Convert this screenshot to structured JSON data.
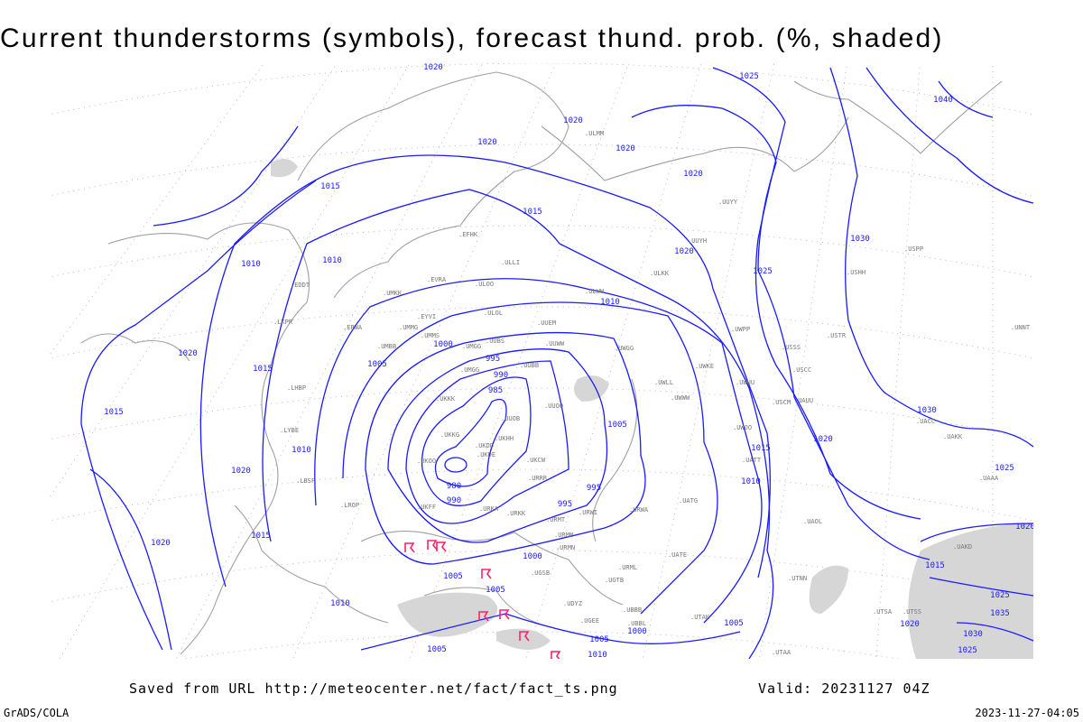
{
  "title": "Current thunderstorms (symbols), forecast thund. prob. (%, shaded)",
  "footer": {
    "saved_from": "Saved from URL http://meteocenter.net/fact/fact_ts.png",
    "valid": "Valid: 20231127 04Z",
    "software": "GrADS/COLA",
    "generated": "2023-11-27-04:05"
  },
  "colors": {
    "isobars": "#1a1aff",
    "coastlines": "#a0a0a0",
    "thunderstorm_symbols": "#ff2266",
    "probability_shading": "#d6d6d6"
  },
  "isobar_labels": [
    "1020",
    "1025",
    "1040",
    "1020",
    "1020",
    "1020",
    "1020",
    "1015",
    "1015",
    "1030",
    "1020",
    "1010",
    "1010",
    "1025",
    "1010",
    "1020",
    "1005",
    "1015",
    "1000",
    "995",
    "990",
    "985",
    "1015",
    "1030",
    "1005",
    "1010",
    "1015",
    "1020",
    "1020",
    "1025",
    "1010",
    "980",
    "990",
    "995",
    "995",
    "1020",
    "1015",
    "1000",
    "1005",
    "1005",
    "1010",
    "1005",
    "1000",
    "1005",
    "1010",
    "1005",
    "1020",
    "1015",
    "1025",
    "1035",
    "1020",
    "1030",
    "1025"
  ],
  "stations": [
    "ULMM",
    "ULLI",
    "EFHK",
    "ULOO",
    "EVRA",
    "ULOL",
    "UMKK",
    "EYVI",
    "UUEM",
    "UMMG",
    "UMMS",
    "UMGG",
    "UUBS",
    "UUWW",
    "UWGG",
    "UMBB",
    "UMGG",
    "UUBB",
    "UKKK",
    "UUOO",
    "UUOB",
    "UKKG",
    "UKHH",
    "UKDD",
    "UKDE",
    "UKOO",
    "UKCW",
    "URRR",
    "UKFF",
    "URKA",
    "URKK",
    "URMT",
    "URMM",
    "URMN",
    "URWI",
    "URWA",
    "UATG",
    "UGSB",
    "UBBB",
    "UDYZ",
    "EPWA",
    "EDDT",
    "LKPR",
    "LHBP",
    "LYBE",
    "LBSF",
    "LROP",
    "UUYY",
    "UUYH",
    "ULWW",
    "ULKK",
    "UWPP",
    "UWKE",
    "UWLL",
    "UWWW",
    "UWUU",
    "UWOO",
    "UATT",
    "USSS",
    "USCC",
    "USCM",
    "UAUU",
    "USTR",
    "USHH",
    "UNNT",
    "USPP",
    "UACC",
    "UAKK",
    "UAAA",
    "UAKD",
    "UTAA",
    "UTNN",
    "UTSS",
    "UTSA",
    "UTAK",
    "UAOL",
    "UATE",
    "URML",
    "UGTB",
    "UGEE",
    "UBBL"
  ],
  "thunderstorm_count": 8
}
